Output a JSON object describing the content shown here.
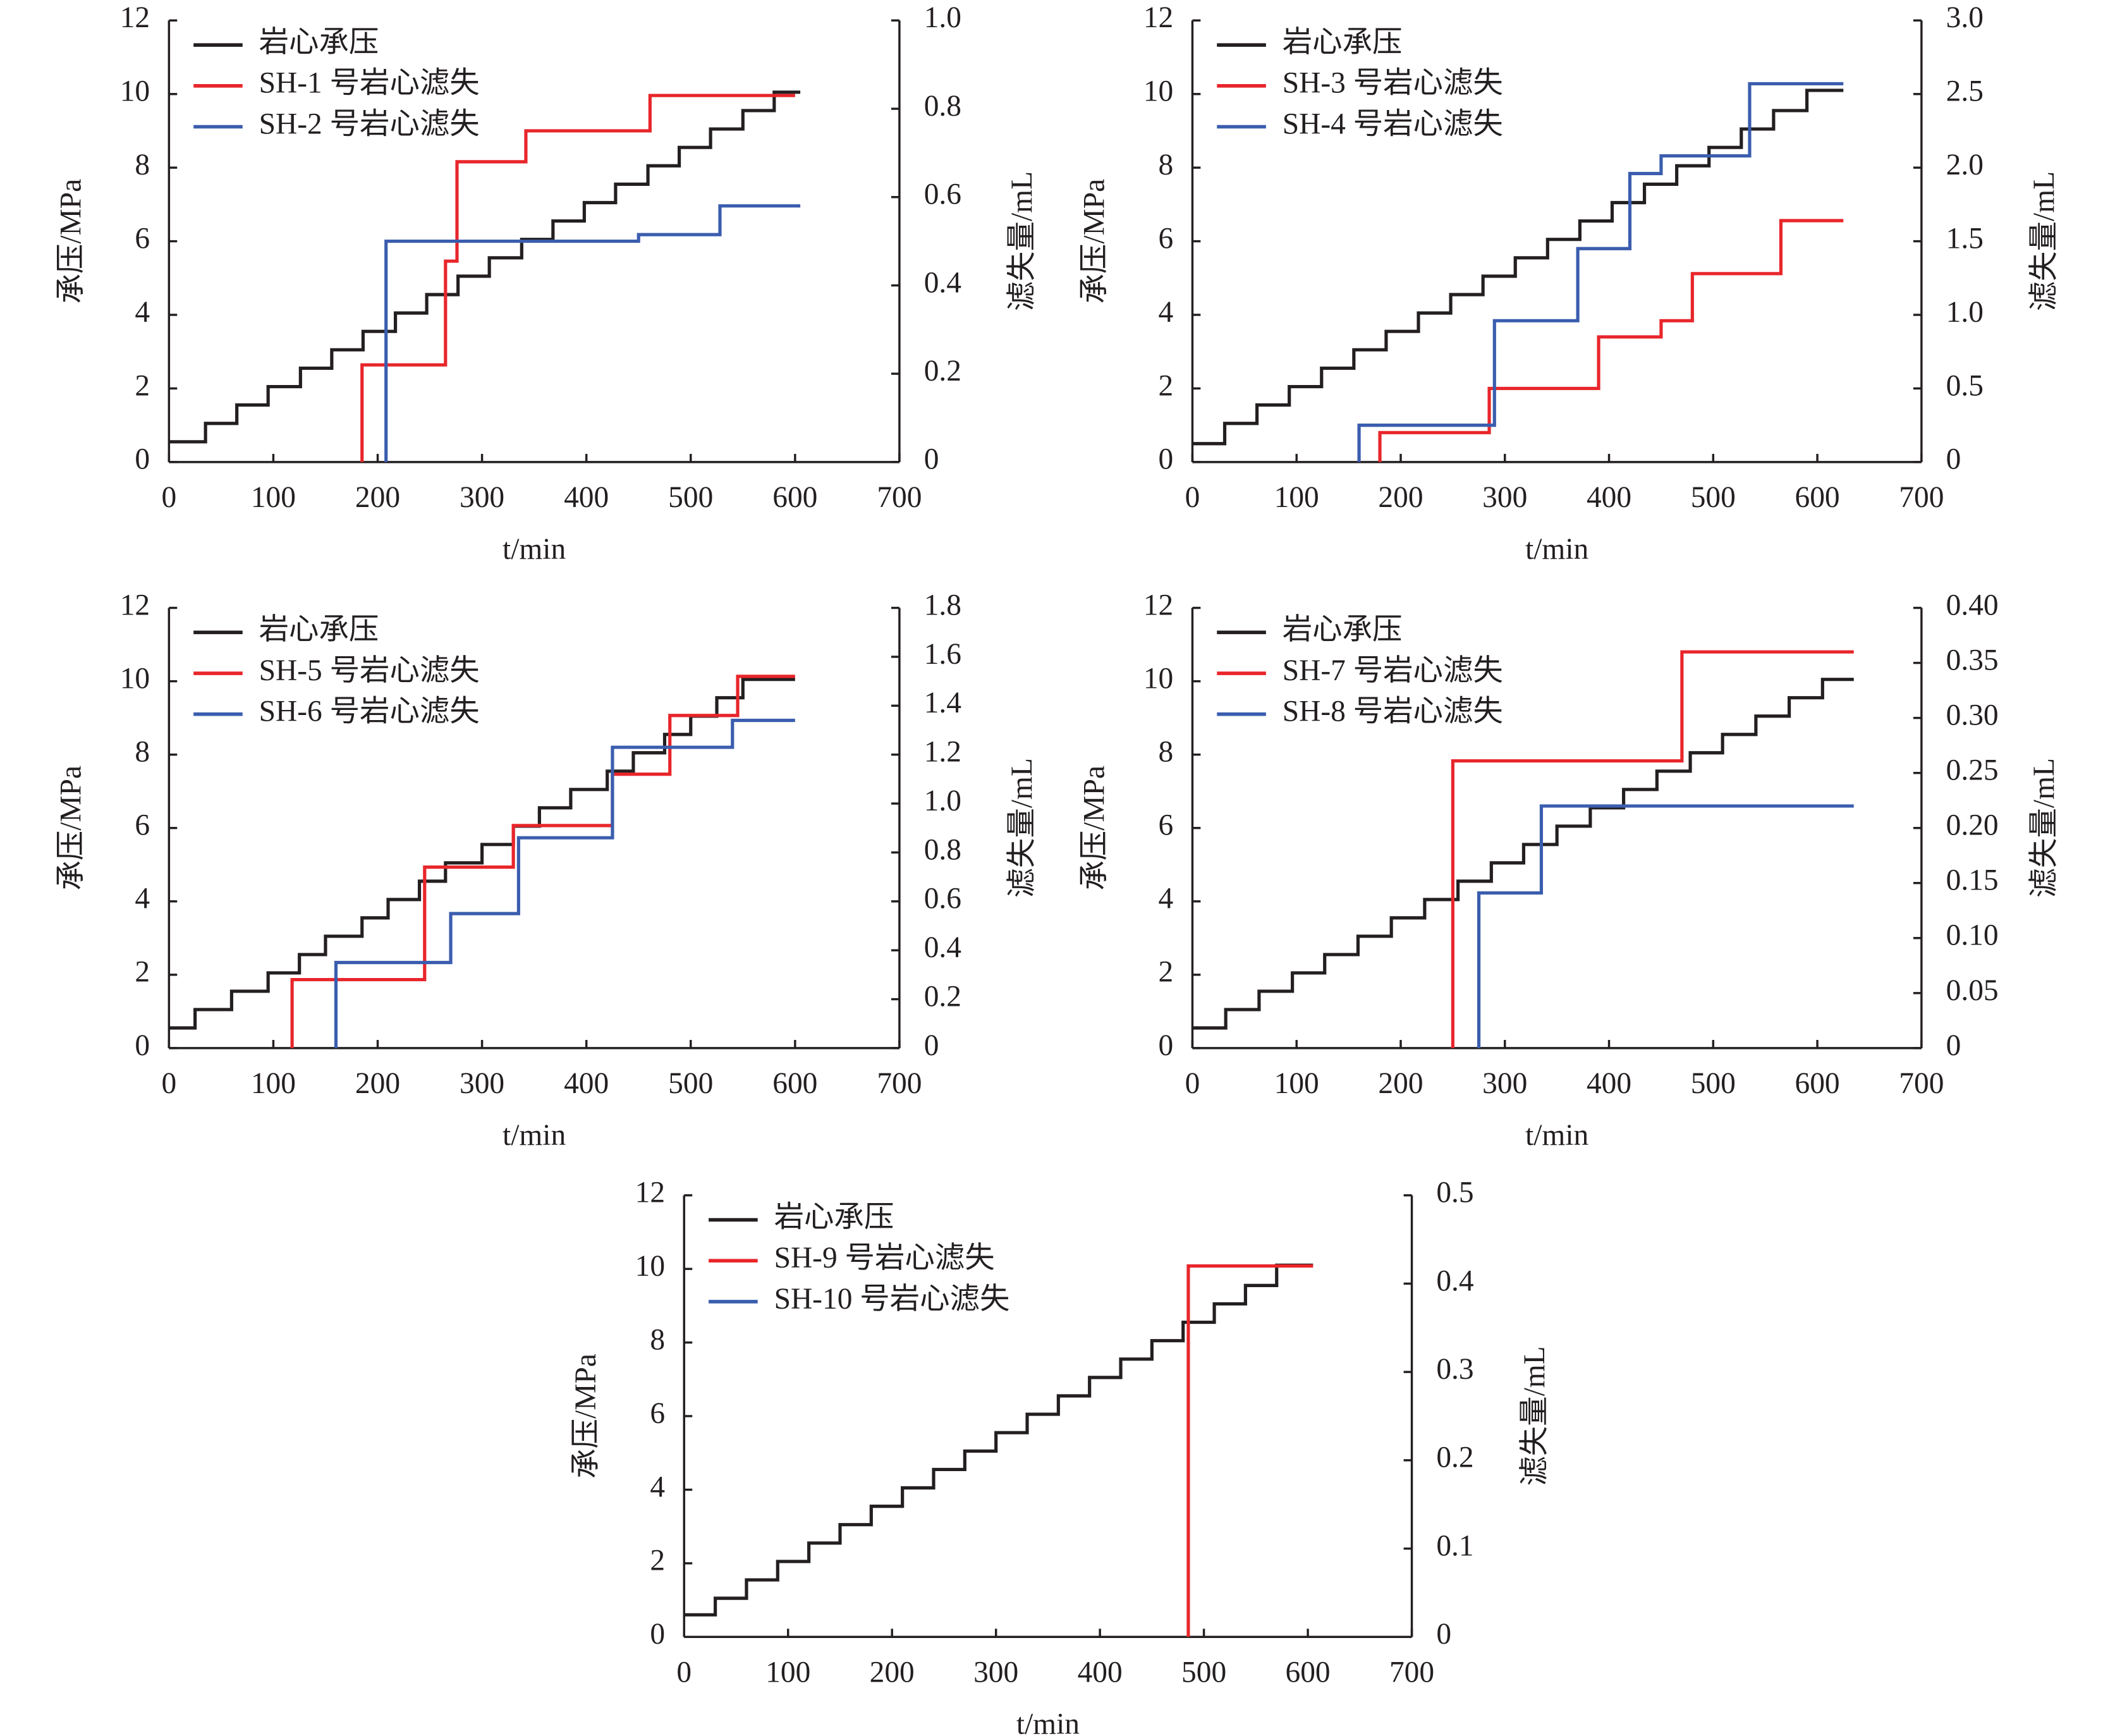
{
  "chart_data": [
    {
      "type": "line",
      "drawstyle": "steps-post",
      "legend": "upper left",
      "x_label": "t/min",
      "y_label": "承压/MPa",
      "y2_label": "滤失量/mL",
      "xlim": [
        0,
        700
      ],
      "xticks": [
        0,
        100,
        200,
        300,
        400,
        500,
        600,
        700
      ],
      "ylim": [
        0,
        12
      ],
      "yticks": [
        0,
        2,
        4,
        6,
        8,
        10,
        12
      ],
      "y2lim": [
        0,
        1
      ],
      "y2ticks": [
        0,
        0.2,
        0.4,
        0.6,
        0.8,
        {
          "value": 1,
          "label": "1.0"
        }
      ],
      "series": [
        {
          "name": "岩心承压",
          "color": "#231f20",
          "x": [
            0,
            35,
            65,
            95,
            126,
            156,
            186,
            217,
            247,
            277,
            307,
            338,
            368,
            398,
            428,
            459,
            489,
            519,
            550,
            580,
            605
          ],
          "values": [
            0.55,
            1.05,
            1.55,
            2.05,
            2.55,
            3.05,
            3.55,
            4.05,
            4.55,
            5.05,
            5.55,
            6.05,
            6.55,
            7.05,
            7.55,
            8.05,
            8.55,
            9.05,
            9.55,
            10.05,
            10.05
          ]
        },
        {
          "name": "SH-1 号岩心滤失",
          "color": "#e8262b",
          "axis": "y2",
          "x": [
            185,
            185,
            265,
            276,
            342,
            461,
            600
          ],
          "values": [
            0,
            0.22,
            0.455,
            0.68,
            0.75,
            0.83,
            0.83
          ]
        },
        {
          "name": "SH-2 号岩心滤失",
          "color": "#3a5dae",
          "axis": "y2",
          "x": [
            208,
            208,
            450,
            528,
            605
          ],
          "values": [
            0,
            0.5,
            0.515,
            0.58,
            0.58
          ]
        }
      ]
    },
    {
      "type": "line",
      "drawstyle": "steps-post",
      "legend": "upper left",
      "x_label": "t/min",
      "y_label": "承压/MPa",
      "y2_label": "滤失量/mL",
      "xlim": [
        0,
        700
      ],
      "xticks": [
        0,
        100,
        200,
        300,
        400,
        500,
        600,
        700
      ],
      "ylim": [
        0,
        12
      ],
      "yticks": [
        0,
        2,
        4,
        6,
        8,
        10,
        12
      ],
      "y2lim": [
        0,
        3
      ],
      "y2ticks": [
        0,
        0.5,
        {
          "value": 1,
          "label": "1.0"
        },
        1.5,
        {
          "value": 2,
          "label": "2.0"
        },
        2.5,
        {
          "value": 3,
          "label": "3.0"
        }
      ],
      "series": [
        {
          "name": "岩心承压",
          "color": "#231f20",
          "x": [
            0,
            31,
            62,
            93,
            124,
            155,
            186,
            217,
            248,
            279,
            310,
            341,
            372,
            403,
            434,
            465,
            496,
            527,
            558,
            590,
            625
          ],
          "values": [
            0.5,
            1.05,
            1.55,
            2.05,
            2.55,
            3.05,
            3.55,
            4.05,
            4.55,
            5.05,
            5.55,
            6.05,
            6.55,
            7.05,
            7.55,
            8.05,
            8.55,
            9.05,
            9.55,
            10.1,
            10.1
          ]
        },
        {
          "name": "SH-3 号岩心滤失",
          "color": "#e8262b",
          "axis": "y2",
          "x": [
            180,
            180,
            285,
            390,
            450,
            480,
            565,
            625
          ],
          "values": [
            0,
            0.2,
            0.5,
            0.85,
            0.96,
            1.28,
            1.64,
            1.64
          ]
        },
        {
          "name": "SH-4 号岩心滤失",
          "color": "#3a5dae",
          "axis": "y2",
          "x": [
            160,
            160,
            290,
            370,
            420,
            450,
            535,
            625
          ],
          "values": [
            0,
            0.25,
            0.96,
            1.45,
            1.96,
            2.08,
            2.57,
            2.57
          ]
        }
      ]
    },
    {
      "type": "line",
      "drawstyle": "steps-post",
      "legend": "upper left",
      "x_label": "t/min",
      "y_label": "承压/MPa",
      "y2_label": "滤失量/mL",
      "xlim": [
        0,
        700
      ],
      "xticks": [
        0,
        100,
        200,
        300,
        400,
        500,
        600,
        700
      ],
      "ylim": [
        0,
        12
      ],
      "yticks": [
        0,
        2,
        4,
        6,
        8,
        10,
        12
      ],
      "y2lim": [
        0,
        1.8
      ],
      "y2ticks": [
        0,
        0.2,
        0.4,
        0.6,
        0.8,
        {
          "value": 1,
          "label": "1.0"
        },
        1.2,
        1.4,
        1.6,
        1.8
      ],
      "series": [
        {
          "name": "岩心承压",
          "color": "#231f20",
          "x": [
            0,
            25,
            60,
            95,
            125,
            150,
            185,
            210,
            240,
            265,
            300,
            330,
            355,
            385,
            420,
            445,
            475,
            500,
            525,
            550,
            600
          ],
          "values": [
            0.55,
            1.05,
            1.55,
            2.05,
            2.55,
            3.05,
            3.55,
            4.05,
            4.55,
            5.05,
            5.55,
            6.05,
            6.55,
            7.05,
            7.55,
            8.05,
            8.55,
            9.05,
            9.55,
            10.05,
            10.05
          ]
        },
        {
          "name": "SH-5 号岩心滤失",
          "color": "#e8262b",
          "axis": "y2",
          "x": [
            118,
            118,
            245,
            330,
            425,
            480,
            545,
            600
          ],
          "values": [
            0,
            0.28,
            0.74,
            0.91,
            1.12,
            1.36,
            1.52,
            1.52
          ]
        },
        {
          "name": "SH-6 号岩心滤失",
          "color": "#3a5dae",
          "axis": "y2",
          "x": [
            160,
            160,
            270,
            335,
            425,
            540,
            600
          ],
          "values": [
            0,
            0.35,
            0.55,
            0.86,
            1.23,
            1.34,
            1.34
          ]
        }
      ]
    },
    {
      "type": "line",
      "drawstyle": "steps-post",
      "legend": "upper left",
      "x_label": "t/min",
      "y_label": "承压/MPa",
      "y2_label": "滤失量/mL",
      "xlim": [
        0,
        700
      ],
      "xticks": [
        0,
        100,
        200,
        300,
        400,
        500,
        600,
        700
      ],
      "ylim": [
        0,
        12
      ],
      "yticks": [
        0,
        2,
        4,
        6,
        8,
        10,
        12
      ],
      "y2lim": [
        0,
        0.4
      ],
      "y2ticks": [
        0,
        0.05,
        {
          "value": 0.1,
          "label": "0.10"
        },
        0.15,
        {
          "value": 0.2,
          "label": "0.20"
        },
        0.25,
        {
          "value": 0.3,
          "label": "0.30"
        },
        0.35,
        {
          "value": 0.4,
          "label": "0.40"
        }
      ],
      "series": [
        {
          "name": "岩心承压",
          "color": "#231f20",
          "x": [
            0,
            32,
            64,
            96,
            127,
            159,
            191,
            223,
            255,
            287,
            318,
            350,
            382,
            414,
            446,
            478,
            509,
            541,
            573,
            605,
            635
          ],
          "values": [
            0.55,
            1.05,
            1.55,
            2.05,
            2.55,
            3.05,
            3.55,
            4.05,
            4.55,
            5.05,
            5.55,
            6.05,
            6.55,
            7.05,
            7.55,
            8.05,
            8.55,
            9.05,
            9.55,
            10.05,
            10.05
          ]
        },
        {
          "name": "SH-7 号岩心滤失",
          "color": "#e8262b",
          "axis": "y2",
          "x": [
            250,
            250,
            470,
            635
          ],
          "values": [
            0,
            0.261,
            0.36,
            0.36
          ]
        },
        {
          "name": "SH-8 号岩心滤失",
          "color": "#3a5dae",
          "axis": "y2",
          "x": [
            275,
            275,
            335,
            635
          ],
          "values": [
            0,
            0.141,
            0.22,
            0.22
          ]
        }
      ]
    },
    {
      "type": "line",
      "drawstyle": "steps-post",
      "legend": "upper left",
      "x_label": "t/min",
      "y_label": "承压/MPa",
      "y2_label": "滤失量/mL",
      "xlim": [
        0,
        700
      ],
      "xticks": [
        0,
        100,
        200,
        300,
        400,
        500,
        600,
        700
      ],
      "ylim": [
        0,
        12
      ],
      "yticks": [
        0,
        2,
        4,
        6,
        8,
        10,
        12
      ],
      "y2lim": [
        0,
        0.5
      ],
      "y2ticks": [
        0,
        0.1,
        0.2,
        0.3,
        0.4,
        0.5
      ],
      "series": [
        {
          "name": "岩心承压",
          "color": "#231f20",
          "x": [
            0,
            30,
            60,
            90,
            120,
            150,
            180,
            210,
            240,
            270,
            300,
            330,
            360,
            390,
            420,
            450,
            480,
            510,
            540,
            570,
            605
          ],
          "values": [
            0.6,
            1.05,
            1.55,
            2.05,
            2.55,
            3.05,
            3.55,
            4.05,
            4.55,
            5.05,
            5.55,
            6.05,
            6.55,
            7.05,
            7.55,
            8.05,
            8.55,
            9.05,
            9.55,
            10.1,
            10.1
          ]
        },
        {
          "name": "SH-9 号岩心滤失",
          "color": "#e8262b",
          "axis": "y2",
          "x": [
            485,
            485,
            605
          ],
          "values": [
            0,
            0.42,
            0.42
          ]
        },
        {
          "name": "SH-10 号岩心滤失",
          "color": "#3a5dae",
          "axis": "y2",
          "x": [],
          "values": []
        }
      ]
    }
  ]
}
